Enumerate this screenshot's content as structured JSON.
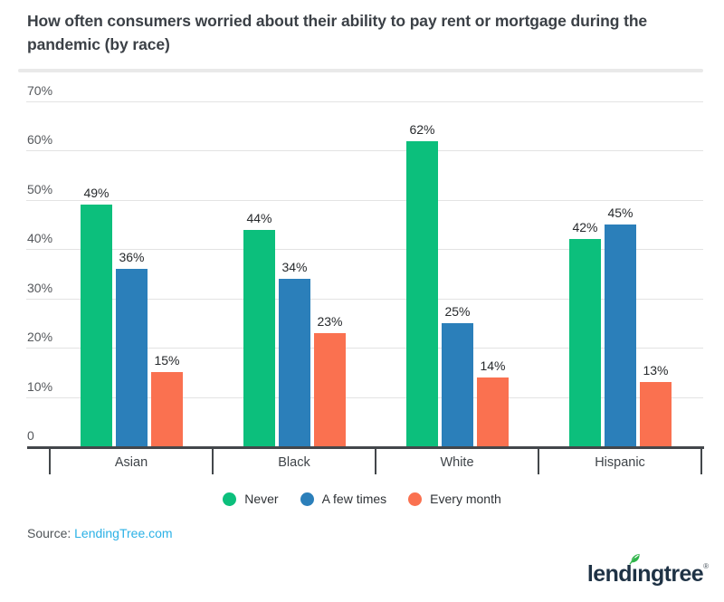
{
  "header": {
    "title_lines": [
      "How often consumers worried about their ability to pay rent or mortgage during the",
      "pandemic (by race)"
    ]
  },
  "chart_data": {
    "type": "bar",
    "title": "How often consumers worried about their ability to pay rent or mortgage during the pandemic (by race)",
    "categories": [
      "Asian",
      "Black",
      "White",
      "Hispanic"
    ],
    "series": [
      {
        "name": "Never",
        "color": "#0cbf7c",
        "values": [
          49,
          44,
          62,
          42
        ]
      },
      {
        "name": "A few times",
        "color": "#2b7fba",
        "values": [
          36,
          34,
          25,
          45
        ]
      },
      {
        "name": "Every month",
        "color": "#fa7150",
        "values": [
          15,
          23,
          14,
          13
        ]
      }
    ],
    "value_suffix": "%",
    "bar_labels": true,
    "xlabel": "",
    "ylabel": "",
    "ylim": [
      0,
      70
    ],
    "ytick_step": 10,
    "ytick_labels": [
      "0",
      "10%",
      "20%",
      "30%",
      "40%",
      "50%",
      "60%",
      "70%"
    ],
    "grid": true,
    "legend_position": "bottom"
  },
  "footer": {
    "source_label": "Source:",
    "source_link": "LendingTree.com"
  },
  "logo": {
    "part1": "lend",
    "i_char": "ı",
    "part2": "ngtree",
    "reg": "®"
  },
  "colors": {
    "grid": "#e3e3e3",
    "axis": "#43474b",
    "link_blue": "#2bb1e6",
    "logo_navy": "#1e3245",
    "leaf_green": "#2eb449",
    "title_text": "#3b4046"
  }
}
